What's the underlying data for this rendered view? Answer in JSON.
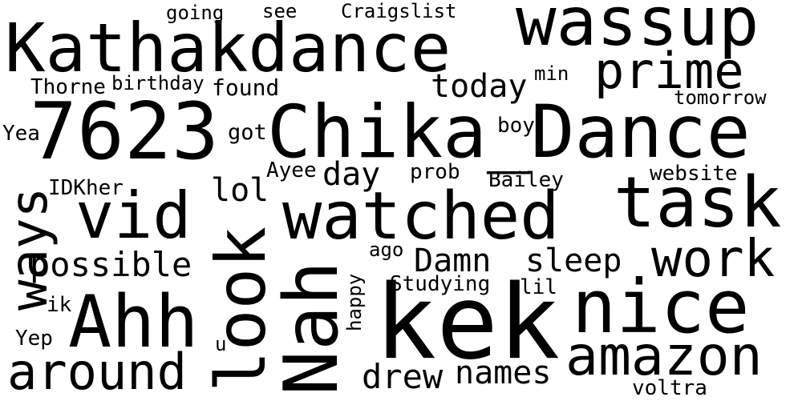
{
  "words": [
    {
      "text": "Kathakdance"
    },
    {
      "text": "wassup"
    },
    {
      "text": "going"
    },
    {
      "text": "see"
    },
    {
      "text": "Craigslist"
    },
    {
      "text": "prime"
    },
    {
      "text": "Thorne"
    },
    {
      "text": "birthday"
    },
    {
      "text": "found"
    },
    {
      "text": "today"
    },
    {
      "text": "min"
    },
    {
      "text": "tomorrow"
    },
    {
      "text": "7623"
    },
    {
      "text": "Chika_Dance"
    },
    {
      "text": "Yea"
    },
    {
      "text": "got"
    },
    {
      "text": "boy"
    },
    {
      "text": "IDKher"
    },
    {
      "text": "Ayee"
    },
    {
      "text": "day"
    },
    {
      "text": "prob"
    },
    {
      "text": "Bailey"
    },
    {
      "text": "website"
    },
    {
      "text": "lol"
    },
    {
      "text": "ways"
    },
    {
      "text": "vid"
    },
    {
      "text": "look"
    },
    {
      "text": "watched"
    },
    {
      "text": "task"
    },
    {
      "text": "possible"
    },
    {
      "text": "ago"
    },
    {
      "text": "Damn"
    },
    {
      "text": "sleep"
    },
    {
      "text": "work"
    },
    {
      "text": "Nah"
    },
    {
      "text": "happy"
    },
    {
      "text": "Studying"
    },
    {
      "text": "lil"
    },
    {
      "text": "ik"
    },
    {
      "text": "Ahh"
    },
    {
      "text": "kek"
    },
    {
      "text": "nice"
    },
    {
      "text": "Yep"
    },
    {
      "text": "u"
    },
    {
      "text": "amazon"
    },
    {
      "text": "around"
    },
    {
      "text": "drew"
    },
    {
      "text": "names"
    },
    {
      "text": "voltra"
    }
  ]
}
